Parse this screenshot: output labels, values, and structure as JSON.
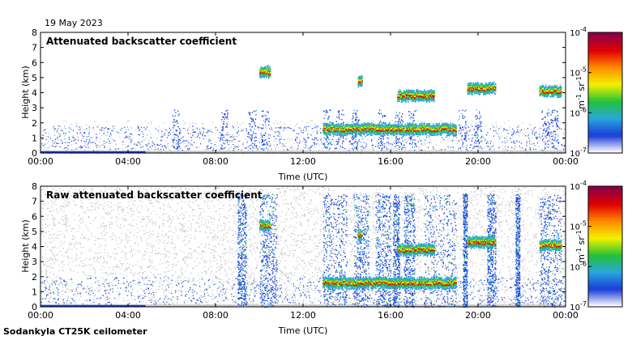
{
  "figure": {
    "date": "19 May 2023",
    "footer": "Sodankyla CT25K ceilometer"
  },
  "chart_data": [
    {
      "type": "heatmap",
      "title": "Attenuated backscatter coefficient",
      "xlabel": "Time (UTC)",
      "ylabel": "Height (km)",
      "xlim": [
        "00:00",
        "24:00"
      ],
      "ylim": [
        0,
        8
      ],
      "x_ticks": [
        "00:00",
        "04:00",
        "08:00",
        "12:00",
        "16:00",
        "20:00",
        "00:00"
      ],
      "y_ticks": [
        "0",
        "1",
        "2",
        "3",
        "4",
        "5",
        "6",
        "7",
        "8"
      ],
      "colorbar": {
        "scale": "log",
        "range": [
          1e-07,
          0.0001
        ],
        "ticks": [
          "10-7",
          "10-6",
          "10-5",
          "10-4"
        ],
        "label": "m-1 sr-1"
      },
      "features": [
        {
          "time_h": [
            12.9,
            19.0
          ],
          "height_km": 1.6,
          "kind": "cloud base"
        },
        {
          "time_h": [
            10.0,
            10.5
          ],
          "height_km": 5.4,
          "kind": "cloud"
        },
        {
          "time_h": [
            14.5,
            14.7
          ],
          "height_km": 4.8,
          "kind": "cloud"
        },
        {
          "time_h": [
            16.3,
            18.0
          ],
          "height_km": 3.8,
          "kind": "cloud"
        },
        {
          "time_h": [
            19.5,
            20.8
          ],
          "height_km": 4.3,
          "kind": "cloud"
        },
        {
          "time_h": [
            22.8,
            23.8
          ],
          "height_km": 4.1,
          "kind": "cloud"
        }
      ]
    },
    {
      "type": "heatmap",
      "title": "Raw attenuated backscatter coefficient",
      "xlabel": "Time (UTC)",
      "ylabel": "Height (km)",
      "xlim": [
        "00:00",
        "24:00"
      ],
      "ylim": [
        0,
        8
      ],
      "x_ticks": [
        "00:00",
        "04:00",
        "08:00",
        "12:00",
        "16:00",
        "20:00",
        "00:00"
      ],
      "y_ticks": [
        "0",
        "1",
        "2",
        "3",
        "4",
        "5",
        "6",
        "7",
        "8"
      ],
      "colorbar": {
        "scale": "log",
        "range": [
          1e-07,
          0.0001
        ],
        "ticks": [
          "10-7",
          "10-6",
          "10-5",
          "10-4"
        ],
        "label": "m-1 sr-1"
      }
    }
  ],
  "colors": {
    "noise": "#c8c8c8",
    "colormap": [
      "#ffffff",
      "#1a3cd8",
      "#2aa6e0",
      "#23c13a",
      "#f2f200",
      "#ff8c00",
      "#e00000",
      "#8b0048"
    ]
  }
}
